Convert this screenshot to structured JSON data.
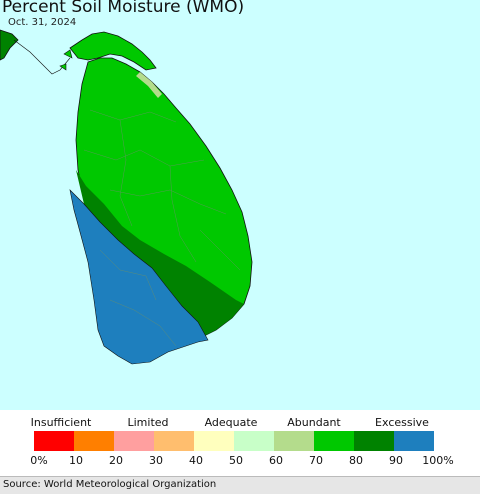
{
  "title": "Percent Soil Moisture (WMO)",
  "date": "Oct. 31, 2024",
  "legend": {
    "categories": [
      "Insufficient",
      "Limited",
      "Adequate",
      "Abundant",
      "Excessive"
    ],
    "ticks": [
      "0%",
      "10",
      "20",
      "30",
      "40",
      "50",
      "60",
      "70",
      "80",
      "90",
      "100%"
    ],
    "colors": [
      "#ff0000",
      "#ff7f00",
      "#ff9f9f",
      "#ffbe6e",
      "#ffffbe",
      "#c8ffc8",
      "#b4dc8c",
      "#00c800",
      "#008200",
      "#1e7fbe"
    ]
  },
  "map": {
    "ocean_color": "#ccffff",
    "land_colors": {
      "north_east": "#00c800",
      "central_band": "#008200",
      "south_west": "#1e7fbe",
      "north_tip": "#b4dc8c"
    }
  },
  "source": "Source: World Meteorological Organization"
}
